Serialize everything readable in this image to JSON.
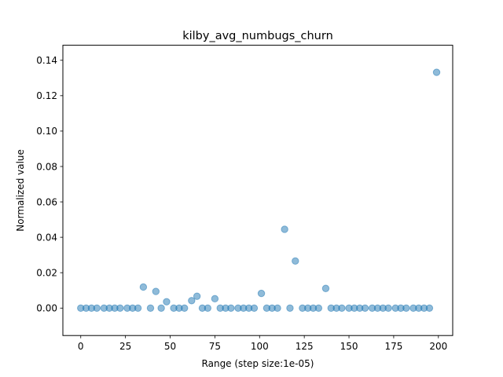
{
  "chart_data": {
    "type": "scatter",
    "title": "kilby_avg_numbugs_churn",
    "xlabel": "Range (step size:1e-05)",
    "ylabel": "Normalized value",
    "xlim": [
      -10,
      208
    ],
    "ylim": [
      -0.0155,
      0.1485
    ],
    "xticks": [
      0,
      25,
      50,
      75,
      100,
      125,
      150,
      175,
      200
    ],
    "xtick_labels": [
      "0",
      "25",
      "50",
      "75",
      "100",
      "125",
      "150",
      "175",
      "200"
    ],
    "yticks": [
      0.0,
      0.02,
      0.04,
      0.06,
      0.08,
      0.1,
      0.12,
      0.14
    ],
    "ytick_labels": [
      "0.00",
      "0.02",
      "0.04",
      "0.06",
      "0.08",
      "0.10",
      "0.12",
      "0.14"
    ],
    "grid": false,
    "marker_color": "#1f77b4",
    "marker_alpha": 0.5,
    "x": [
      0,
      3,
      6,
      9,
      13,
      16,
      19,
      22,
      26,
      29,
      32,
      35,
      39,
      42,
      45,
      48,
      52,
      55,
      58,
      62,
      65,
      68,
      71,
      75,
      78,
      81,
      84,
      88,
      91,
      94,
      97,
      101,
      104,
      107,
      110,
      114,
      117,
      120,
      124,
      127,
      130,
      133,
      137,
      140,
      143,
      146,
      150,
      153,
      156,
      159,
      163,
      166,
      169,
      172,
      176,
      179,
      182,
      186,
      189,
      192,
      195,
      199
    ],
    "y": [
      0,
      0,
      0,
      0,
      0,
      0,
      0,
      0,
      0,
      0,
      0,
      0.0119,
      0,
      0.0094,
      0,
      0.0036,
      0,
      0,
      0,
      0.0042,
      0.0067,
      0,
      0,
      0.0053,
      0,
      0,
      0,
      0,
      0,
      0,
      0,
      0.0083,
      0,
      0,
      0,
      0.0445,
      0,
      0.0266,
      0,
      0,
      0,
      0,
      0.0111,
      0,
      0,
      0,
      0,
      0,
      0,
      0,
      0,
      0,
      0,
      0,
      0,
      0,
      0,
      0,
      0,
      0,
      0,
      0.1332
    ]
  }
}
